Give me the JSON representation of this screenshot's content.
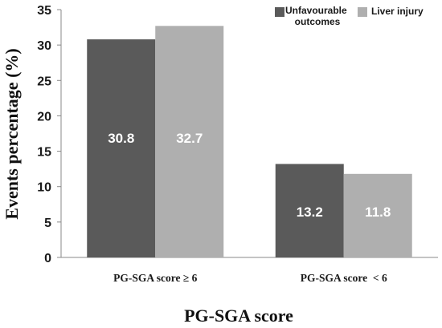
{
  "chart_data": {
    "type": "bar",
    "title": "",
    "xlabel": "PG-SGA score",
    "ylabel": "Events percentage (%)",
    "ylim": [
      0,
      35
    ],
    "yticks": [
      "0",
      "5",
      "10",
      "15",
      "20",
      "25",
      "30",
      "35"
    ],
    "categories": [
      "PG-SGA score ≥ 6",
      "PG-SGA score  < 6"
    ],
    "series": [
      {
        "name": "Unfavourable outcomes",
        "values": [
          30.8,
          13.2
        ],
        "labels": [
          "30.8",
          "13.2"
        ],
        "color": "#5a5a5a"
      },
      {
        "name": "Liver injury",
        "values": [
          32.7,
          11.8
        ],
        "labels": [
          "32.7",
          "11.8"
        ],
        "color": "#afafaf"
      }
    ],
    "legend_placement": "top-right",
    "grid": false
  }
}
